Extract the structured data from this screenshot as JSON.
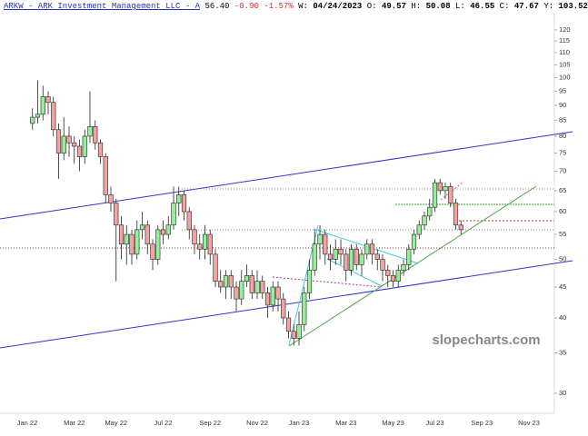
{
  "header": {
    "symbol": "ARKW - ARK Investment Management LLC - A",
    "last": "56.40",
    "change": "-0.90",
    "change_pct": "-1.57%",
    "fields": [
      {
        "label": "W:",
        "value": "04/24/2023"
      },
      {
        "label": "O:",
        "value": "49.57"
      },
      {
        "label": "H:",
        "value": "50.08"
      },
      {
        "label": "L:",
        "value": "46.55"
      },
      {
        "label": "C:",
        "value": "47.67"
      },
      {
        "label": "Y:",
        "value": "103.52"
      }
    ]
  },
  "chart_data": {
    "type": "candlestick",
    "watermark": "slopecharts.com",
    "log_scale": true,
    "up_color": "#98ee98",
    "down_color": "#f4a3a3",
    "ylim": [
      27.8,
      134.5
    ],
    "yticks": [
      30,
      35,
      40,
      45,
      50,
      55,
      60,
      65,
      70,
      75,
      80,
      85,
      90,
      95,
      100,
      105,
      110,
      115,
      120
    ],
    "categories": [
      "Jan 22",
      null,
      null,
      null,
      null,
      null,
      null,
      null,
      null,
      "Mar 22",
      null,
      null,
      null,
      null,
      null,
      null,
      null,
      "May 22",
      null,
      null,
      null,
      null,
      null,
      null,
      null,
      null,
      "Jul 22",
      null,
      null,
      null,
      null,
      null,
      null,
      null,
      null,
      "Sep 22",
      null,
      null,
      null,
      null,
      null,
      null,
      null,
      null,
      "Nov 22",
      null,
      null,
      null,
      null,
      null,
      null,
      null,
      "Jan 23",
      null,
      null,
      null,
      null,
      null,
      null,
      null,
      null,
      "Mar 23",
      null,
      null,
      null,
      null,
      null,
      null,
      null,
      null,
      "May 23",
      null,
      null,
      null,
      null,
      null,
      null,
      null,
      "Jul 23",
      null,
      null,
      null,
      null,
      null,
      null,
      null,
      null,
      "Sep 23",
      null,
      null,
      null,
      null,
      null,
      null,
      null,
      null,
      "Nov 23",
      null,
      null,
      null,
      null,
      null,
      null,
      null
    ],
    "open": [
      null,
      84,
      86,
      87,
      93,
      91,
      82,
      75,
      80,
      78,
      77,
      74,
      80,
      83,
      78,
      74,
      64,
      62,
      57,
      53,
      55,
      51,
      56,
      57,
      53,
      50,
      56,
      55,
      57,
      62,
      64,
      60,
      56,
      53,
      52,
      55,
      51,
      46,
      45,
      47,
      45,
      43,
      46,
      47,
      44,
      46,
      44,
      42,
      45,
      43,
      40,
      38,
      37,
      39,
      44,
      48,
      53,
      55,
      51,
      50,
      52,
      51,
      48,
      52,
      49,
      51,
      53,
      51,
      50,
      48,
      47,
      46,
      48,
      49,
      52,
      55,
      57,
      59,
      61,
      67,
      65,
      66,
      62,
      57,
      null,
      null,
      null,
      null,
      null,
      null,
      null,
      null,
      null,
      null,
      null,
      null,
      null,
      null,
      null,
      null,
      null,
      null,
      null,
      null
    ],
    "high": [
      null,
      89,
      99,
      97,
      95,
      93,
      84,
      86,
      83,
      80,
      79,
      82,
      95,
      85,
      79,
      75,
      66,
      63,
      59,
      57,
      56,
      58,
      60,
      58,
      54,
      57,
      58,
      59,
      66,
      66,
      65,
      61,
      57,
      55,
      57,
      56,
      52,
      48,
      48,
      48,
      46,
      48,
      49,
      48,
      48,
      47,
      45,
      46,
      46,
      44,
      41,
      39,
      41,
      45,
      50,
      56,
      57,
      56,
      53,
      54,
      54,
      52,
      53,
      53,
      52,
      54,
      54,
      52,
      51,
      49,
      48,
      49,
      50,
      53,
      56,
      58,
      60,
      63,
      68,
      68,
      67,
      67,
      63,
      58,
      null,
      null,
      null,
      null,
      null,
      null,
      null,
      null,
      null,
      null,
      null,
      null,
      null,
      null,
      null,
      null,
      null,
      null,
      null,
      null
    ],
    "low": [
      null,
      82,
      84,
      85,
      87,
      80,
      68,
      73,
      74,
      72,
      70,
      72,
      78,
      76,
      72,
      62,
      60,
      46,
      50,
      49,
      49,
      50,
      54,
      51,
      48,
      49,
      53,
      54,
      56,
      59,
      58,
      54,
      51,
      50,
      50,
      49,
      45,
      44,
      43,
      43,
      41,
      42,
      45,
      43,
      43,
      43,
      40,
      41,
      41,
      39,
      37,
      36,
      36,
      38,
      43,
      47,
      50,
      49,
      48,
      49,
      49,
      46,
      47,
      48,
      47,
      50,
      49,
      48,
      46,
      45,
      45,
      45,
      47,
      48,
      51,
      54,
      56,
      58,
      60,
      64,
      63,
      61,
      56,
      55,
      null,
      null,
      null,
      null,
      null,
      null,
      null,
      null,
      null,
      null,
      null,
      null,
      null,
      null,
      null,
      null,
      null,
      null,
      null,
      null
    ],
    "close": [
      null,
      86,
      87,
      93,
      91,
      82,
      75,
      80,
      78,
      77,
      74,
      80,
      83,
      78,
      74,
      64,
      62,
      57,
      53,
      55,
      51,
      56,
      57,
      53,
      50,
      56,
      55,
      57,
      62,
      64,
      60,
      56,
      53,
      52,
      55,
      51,
      46,
      45,
      47,
      45,
      43,
      46,
      47,
      44,
      46,
      44,
      42,
      45,
      43,
      40,
      38,
      37,
      39,
      44,
      48,
      53,
      55,
      51,
      50,
      52,
      51,
      48,
      52,
      49,
      51,
      53,
      51,
      50,
      48,
      47,
      46,
      48,
      49,
      52,
      55,
      57,
      59,
      61,
      67,
      65,
      66,
      62,
      57,
      56,
      null,
      null,
      null,
      null,
      null,
      null,
      null,
      null,
      null,
      null,
      null,
      null,
      null,
      null,
      null,
      null,
      null,
      null,
      null,
      null
    ]
  }
}
